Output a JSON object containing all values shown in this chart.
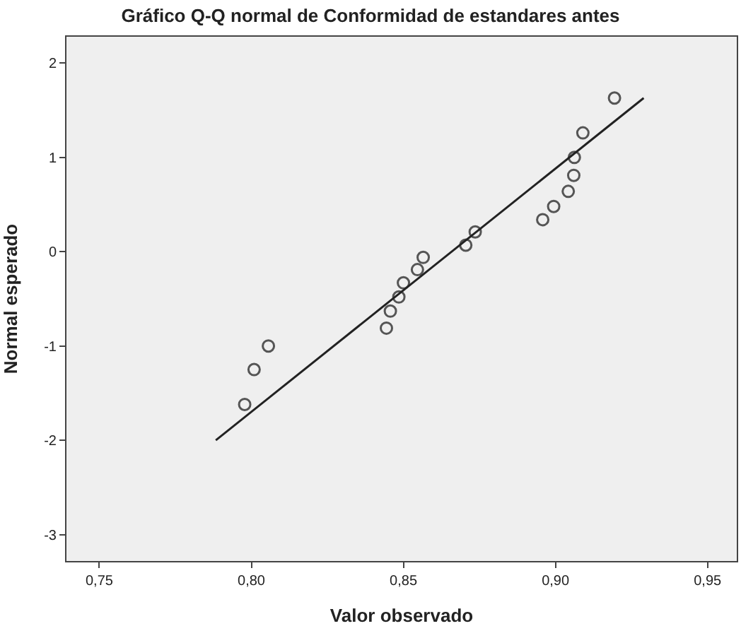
{
  "chart_data": {
    "type": "scatter",
    "title": "Gráfico Q-Q normal de Conformidad de estandares antes",
    "xlabel": "Valor observado",
    "ylabel": "Normal esperado",
    "xlim": [
      0.7392,
      0.9596
    ],
    "ylim": [
      -3.28,
      2.28
    ],
    "xticks": [
      {
        "value": 0.75,
        "label": "0,75"
      },
      {
        "value": 0.8,
        "label": "0,80"
      },
      {
        "value": 0.85,
        "label": "0,85"
      },
      {
        "value": 0.9,
        "label": "0,90"
      },
      {
        "value": 0.95,
        "label": "0,95"
      }
    ],
    "yticks": [
      -3,
      -2,
      -1,
      0,
      1,
      2
    ],
    "grid": false,
    "series": [
      {
        "marker": "circle",
        "color": "#555555",
        "x": [
          0.7978,
          0.8009,
          0.8056,
          0.8444,
          0.8457,
          0.8485,
          0.85,
          0.8546,
          0.8565,
          0.8705,
          0.8736,
          0.8958,
          0.8994,
          0.9042,
          0.906,
          0.9062,
          0.909,
          0.9194
        ],
        "values": [
          -1.62,
          -1.25,
          -1.0,
          -0.81,
          -0.63,
          -0.48,
          -0.33,
          -0.19,
          -0.06,
          0.07,
          0.21,
          0.34,
          0.48,
          0.64,
          0.81,
          1.0,
          1.26,
          1.63
        ]
      },
      {
        "type": "line",
        "marker": "none",
        "color": "#222222",
        "x": [
          0.7883,
          0.929
        ],
        "values": [
          -2.0,
          1.63
        ]
      }
    ]
  }
}
